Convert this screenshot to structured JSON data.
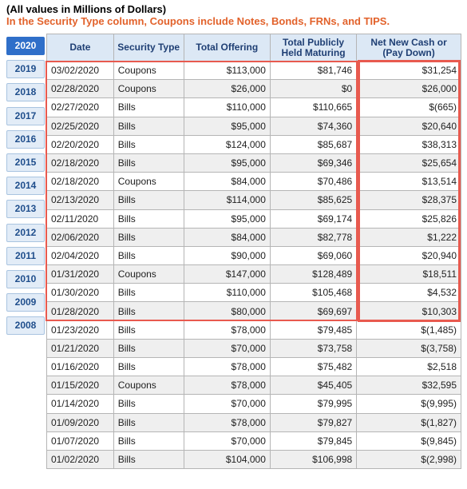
{
  "notes": {
    "line1": "(All values in Millions of Dollars)",
    "line2": "In the Security Type column, Coupons include Notes, Bonds, FRNs, and TIPS."
  },
  "year_tabs": [
    "2020",
    "2019",
    "2018",
    "2017",
    "2016",
    "2015",
    "2014",
    "2013",
    "2012",
    "2011",
    "2010",
    "2009",
    "2008"
  ],
  "active_year": "2020",
  "columns": [
    "Date",
    "Security Type",
    "Total Offering",
    "Total Publicly Held Maturing",
    "Net New Cash or (Pay Down)"
  ],
  "rows": [
    [
      "03/02/2020",
      "Coupons",
      "$113,000",
      "$81,746",
      "$31,254"
    ],
    [
      "02/28/2020",
      "Coupons",
      "$26,000",
      "$0",
      "$26,000"
    ],
    [
      "02/27/2020",
      "Bills",
      "$110,000",
      "$110,665",
      "$(665)"
    ],
    [
      "02/25/2020",
      "Bills",
      "$95,000",
      "$74,360",
      "$20,640"
    ],
    [
      "02/20/2020",
      "Bills",
      "$124,000",
      "$85,687",
      "$38,313"
    ],
    [
      "02/18/2020",
      "Bills",
      "$95,000",
      "$69,346",
      "$25,654"
    ],
    [
      "02/18/2020",
      "Coupons",
      "$84,000",
      "$70,486",
      "$13,514"
    ],
    [
      "02/13/2020",
      "Bills",
      "$114,000",
      "$85,625",
      "$28,375"
    ],
    [
      "02/11/2020",
      "Bills",
      "$95,000",
      "$69,174",
      "$25,826"
    ],
    [
      "02/06/2020",
      "Bills",
      "$84,000",
      "$82,778",
      "$1,222"
    ],
    [
      "02/04/2020",
      "Bills",
      "$90,000",
      "$69,060",
      "$20,940"
    ],
    [
      "01/31/2020",
      "Coupons",
      "$147,000",
      "$128,489",
      "$18,511"
    ],
    [
      "01/30/2020",
      "Bills",
      "$110,000",
      "$105,468",
      "$4,532"
    ],
    [
      "01/28/2020",
      "Bills",
      "$80,000",
      "$69,697",
      "$10,303"
    ],
    [
      "01/23/2020",
      "Bills",
      "$78,000",
      "$79,485",
      "$(1,485)"
    ],
    [
      "01/21/2020",
      "Bills",
      "$70,000",
      "$73,758",
      "$(3,758)"
    ],
    [
      "01/16/2020",
      "Bills",
      "$78,000",
      "$75,482",
      "$2,518"
    ],
    [
      "01/15/2020",
      "Coupons",
      "$78,000",
      "$45,405",
      "$32,595"
    ],
    [
      "01/14/2020",
      "Bills",
      "$70,000",
      "$79,995",
      "$(9,995)"
    ],
    [
      "01/09/2020",
      "Bills",
      "$78,000",
      "$79,827",
      "$(1,827)"
    ],
    [
      "01/07/2020",
      "Bills",
      "$70,000",
      "$79,845",
      "$(9,845)"
    ],
    [
      "01/02/2020",
      "Bills",
      "$104,000",
      "$106,998",
      "$(2,998)"
    ]
  ],
  "highlight_color": "#e85a4f"
}
